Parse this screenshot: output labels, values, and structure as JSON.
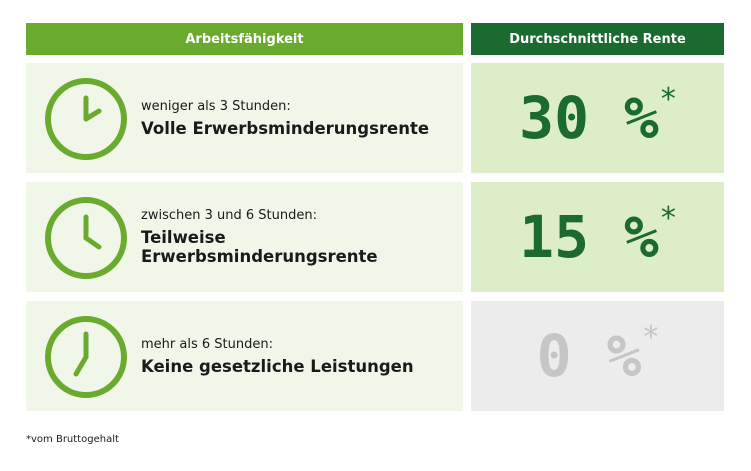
{
  "header": {
    "left_label": "Arbeitsfähigkeit",
    "right_label": "Durchschnittliche Rente"
  },
  "rows": [
    {
      "subtitle": "weniger als 3 Stunden:",
      "title": "Volle Erwerbsminderungsrente",
      "value": "30 %",
      "marker": "*",
      "clock_icon": "clock-2-oclock-icon"
    },
    {
      "subtitle": "zwischen 3 und 6 Stunden:",
      "title": "Teilweise Erwerbsminderungsrente",
      "value": "15 %",
      "marker": "*",
      "clock_icon": "clock-4-oclock-icon"
    },
    {
      "subtitle": "mehr als 6 Stunden:",
      "title": "Keine gesetzliche Leistungen",
      "value": "0 %",
      "marker": "*",
      "clock_icon": "clock-7-oclock-icon"
    }
  ],
  "footnote": "*vom Bruttogehalt",
  "colors": {
    "header_left": "#6aaa2e",
    "header_right": "#1b6b30",
    "clock_green": "#6aaa2e",
    "value_green": "#1b6b30",
    "value_grey": "#c6c6c6",
    "marker_green": "#6aaa2e"
  }
}
